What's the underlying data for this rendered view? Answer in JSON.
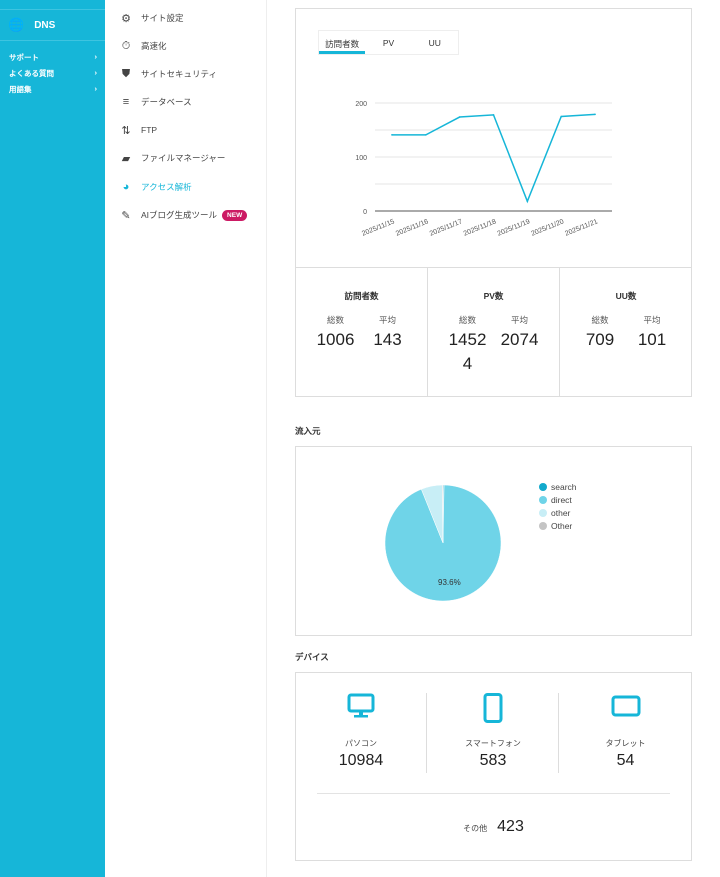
{
  "sidebar": {
    "dns": "DNS",
    "links": [
      {
        "label": "サポート"
      },
      {
        "label": "よくある質問"
      },
      {
        "label": "用語集"
      }
    ]
  },
  "menu": {
    "items": [
      {
        "label": "サイト設定",
        "icon": "site-settings-icon"
      },
      {
        "label": "高速化",
        "icon": "stopwatch-icon"
      },
      {
        "label": "サイトセキュリティ",
        "icon": "shield-icon"
      },
      {
        "label": "データベース",
        "icon": "database-icon"
      },
      {
        "label": "FTP",
        "icon": "transfer-arrows-icon"
      },
      {
        "label": "ファイルマネージャー",
        "icon": "folder-icon"
      },
      {
        "label": "アクセス解析",
        "icon": "pie-chart-icon",
        "active": true
      },
      {
        "label": "AIブログ生成ツール",
        "icon": "document-edit-icon",
        "badge": "NEW"
      }
    ]
  },
  "tabs": [
    "訪問者数",
    "PV",
    "UU"
  ],
  "chart_data": {
    "type": "line",
    "title": "訪問者数",
    "x": [
      "2025/11/15",
      "2025/11/16",
      "2025/11/17",
      "2025/11/18",
      "2025/11/19",
      "2025/11/20",
      "2025/11/21"
    ],
    "values": [
      141,
      141,
      174,
      178,
      18,
      175,
      179
    ],
    "yticks": [
      0,
      100,
      200
    ],
    "ylim": [
      0,
      200
    ],
    "color": "#16b6d8",
    "grid": true
  },
  "stats": [
    {
      "title": "訪問者数",
      "total_label": "総数",
      "avg_label": "平均",
      "total": "1006",
      "avg": "143"
    },
    {
      "title": "PV数",
      "total_label": "総数",
      "avg_label": "平均",
      "total": "14524",
      "avg": "2074"
    },
    {
      "title": "UU数",
      "total_label": "総数",
      "avg_label": "平均",
      "total": "709",
      "avg": "101"
    }
  ],
  "sources": {
    "title": "流入元",
    "pie": {
      "type": "pie",
      "slices": [
        {
          "name": "search",
          "value": 0.3,
          "color": "#12a9cc"
        },
        {
          "name": "direct",
          "value": 93.6,
          "color": "#6fd4e8"
        },
        {
          "name": "other",
          "value": 5.9,
          "color": "#c8eef6"
        },
        {
          "name": "Other",
          "value": 0.2,
          "color": "#c4c4c4"
        }
      ],
      "label": "93.6%"
    }
  },
  "devices": {
    "title": "デバイス",
    "items": [
      {
        "label": "パソコン",
        "value": "10984",
        "icon": "desktop-icon"
      },
      {
        "label": "スマートフォン",
        "value": "583",
        "icon": "smartphone-icon"
      },
      {
        "label": "タブレット",
        "value": "54",
        "icon": "tablet-icon"
      }
    ],
    "other_label": "その他",
    "other_value": "423"
  }
}
